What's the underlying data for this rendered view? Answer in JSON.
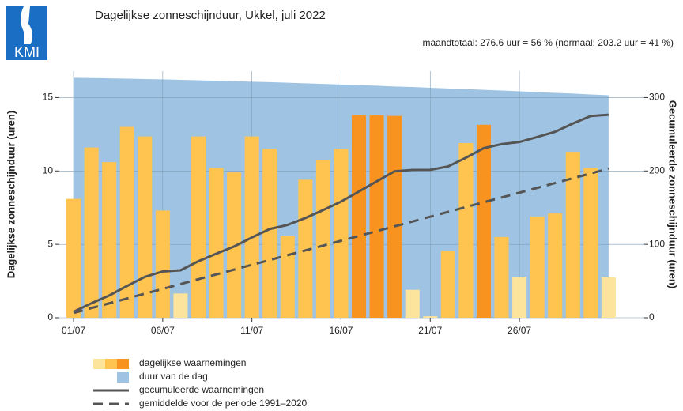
{
  "logo": "KMI",
  "chart_data": {
    "type": "bar",
    "title": "Dagelijkse zonneschijnduur, Ukkel, juli 2022",
    "subtitle": "maandtotaal: 276.6 uur = 56 % (normaal: 203.2 uur = 41 %)",
    "y_label": "Dagelijkse zonneschijnduur (uren)",
    "y2_label": "Gecumuleerde zonneschijnduur (uren)",
    "x": [
      1,
      2,
      3,
      4,
      5,
      6,
      7,
      8,
      9,
      10,
      11,
      12,
      13,
      14,
      15,
      16,
      17,
      18,
      19,
      20,
      21,
      22,
      23,
      24,
      25,
      26,
      27,
      28,
      29,
      30,
      31
    ],
    "xlim": [
      0.2,
      33
    ],
    "xticks": [
      {
        "value": 1,
        "label": "01/07"
      },
      {
        "value": 6,
        "label": "06/07"
      },
      {
        "value": 11,
        "label": "11/07"
      },
      {
        "value": 16,
        "label": "16/07"
      },
      {
        "value": 21,
        "label": "21/07"
      },
      {
        "value": 26,
        "label": "26/07"
      }
    ],
    "ylim": [
      0,
      16.8
    ],
    "yticks": [
      0,
      5,
      10,
      15
    ],
    "y2lim": [
      0,
      336
    ],
    "y2ticks": [
      0,
      100,
      200,
      300
    ],
    "grid": true,
    "series": [
      {
        "name": "dagelijkse waarnemingen",
        "colors": [
          "#fde49c",
          "#ffc34f",
          "#f7931e"
        ],
        "bar_colors": [
          "#ffc34f",
          "#ffc34f",
          "#ffc34f",
          "#ffc34f",
          "#ffc34f",
          "#ffc34f",
          "#fde49c",
          "#ffc34f",
          "#ffc34f",
          "#ffc34f",
          "#ffc34f",
          "#ffc34f",
          "#ffc34f",
          "#ffc34f",
          "#ffc34f",
          "#ffc34f",
          "#f7931e",
          "#f7931e",
          "#f7931e",
          "#fde49c",
          "#fde49c",
          "#ffc34f",
          "#ffc34f",
          "#f7931e",
          "#ffc34f",
          "#fde49c",
          "#ffc34f",
          "#ffc34f",
          "#ffc34f",
          "#ffc34f",
          "#fde49c"
        ],
        "values": [
          8.1,
          11.6,
          10.6,
          13.0,
          12.35,
          7.3,
          1.65,
          12.35,
          10.2,
          9.9,
          12.35,
          11.5,
          5.6,
          9.4,
          10.75,
          11.5,
          13.8,
          13.8,
          13.75,
          1.9,
          0.1,
          4.55,
          11.9,
          13.15,
          5.5,
          2.8,
          6.9,
          7.1,
          11.3,
          10.2,
          2.75
        ]
      },
      {
        "name": "duur van de dag",
        "color": "#9fc4e3",
        "values": [
          16.35,
          16.33,
          16.31,
          16.29,
          16.26,
          16.24,
          16.21,
          16.18,
          16.15,
          16.12,
          16.08,
          16.05,
          16.01,
          15.97,
          15.93,
          15.89,
          15.85,
          15.81,
          15.76,
          15.72,
          15.67,
          15.62,
          15.58,
          15.53,
          15.48,
          15.43,
          15.37,
          15.32,
          15.27,
          15.21,
          15.16
        ]
      },
      {
        "name": "gecumuleerde waarnemingen",
        "color": "#555555",
        "axis": "y2",
        "values": [
          8.1,
          19.7,
          30.3,
          43.3,
          55.7,
          63.0,
          64.6,
          77.0,
          87.2,
          97.1,
          109.4,
          120.9,
          126.5,
          135.9,
          146.7,
          158.2,
          172.0,
          185.8,
          199.5,
          201.4,
          201.5,
          206.1,
          218.0,
          231.1,
          236.6,
          239.4,
          246.3,
          253.4,
          264.7,
          274.9,
          276.6
        ]
      },
      {
        "name": "gemiddelde voor de periode 1991–2020",
        "color": "#555555",
        "axis": "y2",
        "dash": true,
        "values": [
          6.55,
          13.11,
          19.66,
          26.22,
          32.77,
          39.33,
          45.88,
          52.44,
          58.99,
          65.55,
          72.1,
          78.66,
          85.21,
          91.77,
          98.32,
          104.88,
          111.43,
          117.99,
          124.54,
          131.1,
          137.65,
          144.21,
          150.76,
          157.32,
          163.87,
          170.43,
          176.98,
          183.54,
          190.09,
          196.65,
          203.2
        ]
      }
    ]
  }
}
